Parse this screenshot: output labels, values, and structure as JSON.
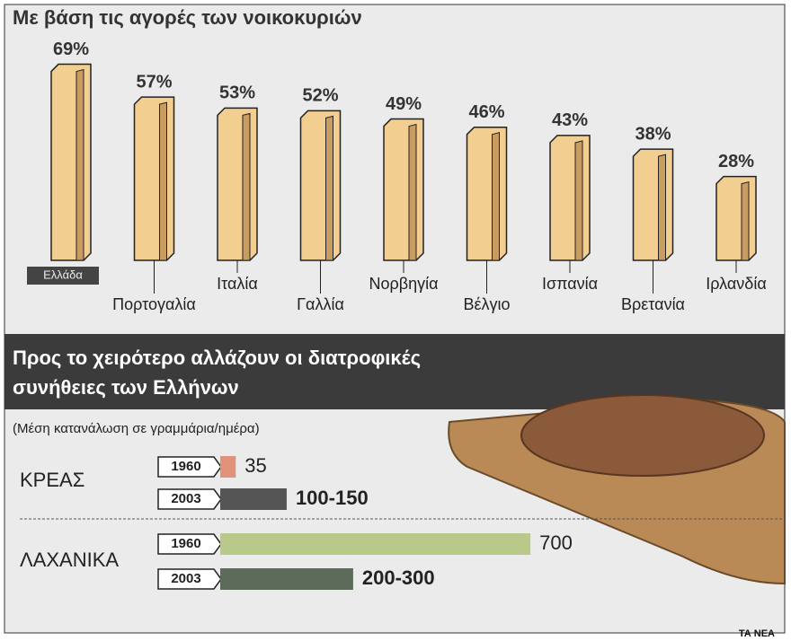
{
  "chart_data": [
    {
      "type": "bar",
      "title": "Με βάση τις αγορές των νοικοκυριών",
      "categories": [
        "Ελλάδα",
        "Πορτογαλία",
        "Ιταλία",
        "Γαλλία",
        "Νορβηγία",
        "Βέλγιο",
        "Ισπανία",
        "Βρετανία",
        "Ιρλανδία"
      ],
      "values": [
        69,
        57,
        53,
        52,
        49,
        46,
        43,
        38,
        28
      ],
      "value_labels": [
        "69%",
        "57%",
        "53%",
        "52%",
        "49%",
        "46%",
        "43%",
        "38%",
        "28%"
      ],
      "color": "#f2cf90"
    },
    {
      "type": "hbar",
      "title": [
        "Προς το χειρότερο αλλάζουν οι διατροφικές",
        "συνήθειες των Ελλήνων"
      ],
      "subtitle": "(Μέση κατανάλωση σε γραμμάρια/ημέρα)",
      "groups": [
        {
          "name": "ΚΡΕΑΣ",
          "bars": [
            {
              "year": "1960",
              "value": 35,
              "color": "#e0937a"
            },
            {
              "year": "2003",
              "value": [
                100,
                150
              ],
              "value_label": "100-150",
              "color": "#555555"
            }
          ]
        },
        {
          "name": "ΛΑΧΑΝΙΚΑ",
          "bars": [
            {
              "year": "1960",
              "value": 700,
              "color": "#b9c98a"
            },
            {
              "year": "2003",
              "value": [
                200,
                300
              ],
              "value_label": "200-300",
              "color": "#5d6b5a"
            }
          ]
        }
      ]
    }
  ],
  "source": "ΤΑ ΝΕΑ"
}
